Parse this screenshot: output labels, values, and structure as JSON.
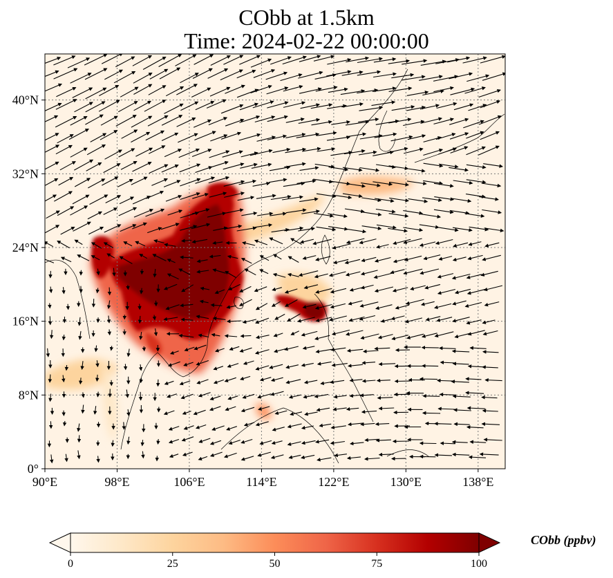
{
  "figure": {
    "title_line1": "CObb at 1.5km",
    "title_line2": "Time: 2024-02-22 00:00:00"
  },
  "map": {
    "lon_range": [
      90,
      141
    ],
    "lat_range": [
      0,
      45
    ],
    "lon_ticks": [
      "90°E",
      "98°E",
      "106°E",
      "114°E",
      "122°E",
      "130°E",
      "138°E"
    ],
    "lat_ticks": [
      "0°",
      "8°N",
      "16°N",
      "24°N",
      "32°N",
      "40°N"
    ],
    "gridlines": true,
    "field": "CObb",
    "vectors": "wind arrows at 1.5km"
  },
  "colorbar": {
    "label": "CObb (ppbv)",
    "colormap": "OrRd",
    "range": [
      0,
      100
    ],
    "extend": "both",
    "ticks": [
      "0",
      "25",
      "50",
      "75",
      "100"
    ],
    "colors": [
      "#fff7ec",
      "#fee8c8",
      "#fdd49e",
      "#fdbb84",
      "#fc8d59",
      "#ef6548",
      "#d7301f",
      "#b30000",
      "#7f0000"
    ]
  }
}
